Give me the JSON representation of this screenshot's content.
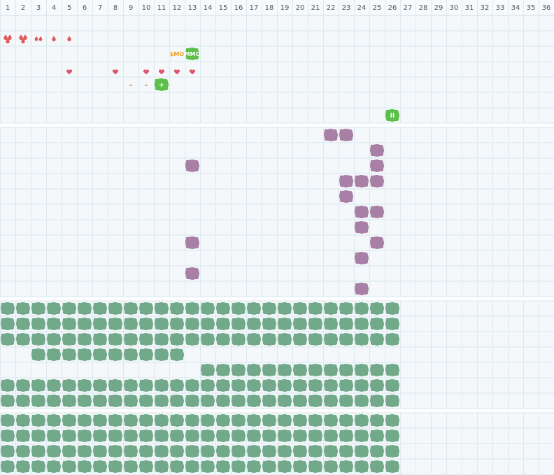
{
  "header": {
    "columns": [
      1,
      2,
      3,
      4,
      5,
      6,
      7,
      8,
      9,
      10,
      11,
      12,
      13,
      14,
      15,
      16,
      17,
      18,
      19,
      20,
      21,
      22,
      23,
      24,
      25,
      26,
      27,
      28,
      29,
      30,
      31,
      32,
      33,
      34,
      35,
      36
    ]
  },
  "badges": [
    {
      "text": "$MO"
    },
    {
      "text": "MMO"
    },
    {
      "text": "–"
    },
    {
      "text": "–"
    },
    {
      "text": "+"
    },
    {
      "text": "II"
    }
  ]
}
